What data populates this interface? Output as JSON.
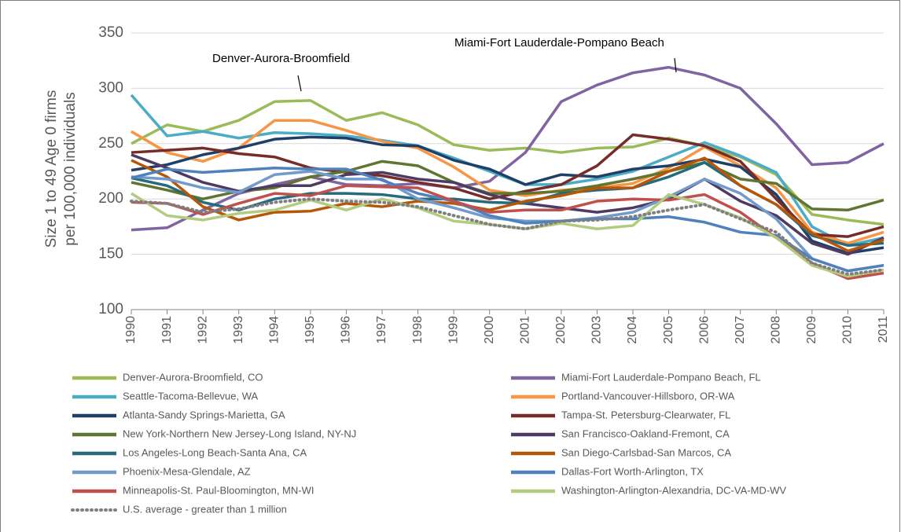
{
  "chart_data": {
    "type": "line",
    "ylabel": [
      "Size 1 to 49 Age 0 firms",
      "per 100,000 individuals"
    ],
    "annotations": [
      "Denver-Aurora-Broomfield",
      "Miami-Fort Lauderdale-Pompano Beach"
    ],
    "categories": [
      "1990",
      "1991",
      "1992",
      "1993",
      "1994",
      "1995",
      "1996",
      "1997",
      "1998",
      "1999",
      "2000",
      "2001",
      "2002",
      "2003",
      "2004",
      "2005",
      "2006",
      "2007",
      "2008",
      "2009",
      "2010",
      "2011"
    ],
    "ylim": [
      100,
      350
    ],
    "yticks": [
      100,
      150,
      200,
      250,
      300,
      350
    ],
    "grid": true,
    "legend": "bottom",
    "series": [
      {
        "name": "Denver-Aurora-Broomfield, CO",
        "color": "#9bbb59",
        "values": [
          250,
          267,
          261,
          271,
          288,
          289,
          271,
          278,
          267,
          249,
          244,
          246,
          242,
          246,
          247,
          255,
          248,
          238,
          222,
          186,
          181,
          177
        ]
      },
      {
        "name": "Miami-Fort Lauderdale-Pompano Beach, FL",
        "color": "#8064a2",
        "values": [
          172,
          174,
          190,
          205,
          213,
          220,
          213,
          212,
          214,
          210,
          216,
          242,
          288,
          303,
          314,
          319,
          312,
          300,
          268,
          231,
          233,
          250
        ]
      },
      {
        "name": "Seattle-Tacoma-Bellevue, WA",
        "color": "#4bacc6",
        "values": [
          294,
          257,
          261,
          255,
          260,
          259,
          257,
          253,
          248,
          237,
          225,
          213,
          213,
          218,
          225,
          238,
          251,
          239,
          224,
          175,
          158,
          165
        ]
      },
      {
        "name": "Portland-Vancouver-Hillsboro, OR-WA",
        "color": "#f79646",
        "values": [
          261,
          242,
          234,
          246,
          271,
          271,
          262,
          252,
          246,
          229,
          208,
          203,
          208,
          210,
          214,
          228,
          247,
          230,
          210,
          170,
          160,
          170
        ]
      },
      {
        "name": "Atlanta-Sandy Springs-Marietta, GA",
        "color": "#1f3f66",
        "values": [
          226,
          231,
          240,
          246,
          254,
          256,
          255,
          249,
          248,
          235,
          227,
          213,
          222,
          220,
          227,
          230,
          236,
          229,
          204,
          162,
          151,
          156
        ]
      },
      {
        "name": "Tampa-St. Petersburg-Clearwater, FL",
        "color": "#772c2a",
        "values": [
          242,
          244,
          246,
          241,
          238,
          228,
          224,
          221,
          215,
          210,
          200,
          207,
          213,
          230,
          258,
          254,
          248,
          234,
          200,
          168,
          166,
          175
        ]
      },
      {
        "name": "New York-Northern New Jersey-Long Island, NY-NJ",
        "color": "#5f7530",
        "values": [
          215,
          208,
          200,
          207,
          210,
          220,
          225,
          234,
          230,
          215,
          205,
          205,
          207,
          212,
          218,
          225,
          233,
          218,
          214,
          191,
          190,
          199
        ]
      },
      {
        "name": "San Francisco-Oakland-Fremont, CA",
        "color": "#4d3b62",
        "values": [
          240,
          228,
          215,
          207,
          212,
          212,
          222,
          224,
          218,
          215,
          204,
          196,
          192,
          188,
          192,
          200,
          218,
          198,
          185,
          160,
          150,
          165
        ]
      },
      {
        "name": "Los Angeles-Long Beach-Santa Ana, CA",
        "color": "#276a7c",
        "values": [
          219,
          212,
          197,
          190,
          200,
          205,
          205,
          204,
          200,
          200,
          197,
          196,
          205,
          208,
          210,
          220,
          233,
          212,
          195,
          167,
          158,
          160
        ]
      },
      {
        "name": "San Diego-Carlsbad-San Marcos, CA",
        "color": "#b65708",
        "values": [
          235,
          220,
          193,
          181,
          188,
          189,
          196,
          193,
          198,
          196,
          190,
          198,
          203,
          210,
          210,
          225,
          237,
          212,
          195,
          169,
          153,
          163
        ]
      },
      {
        "name": "Phoenix-Mesa-Glendale, AZ",
        "color": "#729aca",
        "values": [
          220,
          218,
          210,
          206,
          222,
          225,
          218,
          218,
          200,
          192,
          183,
          180,
          180,
          183,
          188,
          202,
          218,
          205,
          182,
          146,
          135,
          140
        ]
      },
      {
        "name": "Dallas-Fort Worth-Arlington, TX",
        "color": "#4f81bd",
        "values": [
          219,
          227,
          224,
          226,
          228,
          227,
          227,
          217,
          205,
          198,
          185,
          178,
          180,
          182,
          182,
          184,
          179,
          170,
          167,
          146,
          135,
          140
        ]
      },
      {
        "name": "Minneapolis-St. Paul-Bloomington, MN-WI",
        "color": "#c0504d",
        "values": [
          197,
          196,
          186,
          196,
          205,
          203,
          212,
          211,
          210,
          198,
          188,
          190,
          190,
          198,
          200,
          199,
          204,
          188,
          165,
          142,
          128,
          133
        ]
      },
      {
        "name": "Washington-Arlington-Alexandria, DC-VA-MD-WV",
        "color": "#b2cb7e",
        "values": [
          205,
          185,
          181,
          187,
          190,
          199,
          190,
          200,
          192,
          180,
          177,
          173,
          178,
          173,
          176,
          204,
          195,
          183,
          165,
          140,
          130,
          136
        ]
      },
      {
        "name": "U.S. average - greater than 1 million",
        "color": "#7f7f7f",
        "dotted": true,
        "values": [
          198,
          196,
          188,
          191,
          197,
          200,
          198,
          197,
          193,
          185,
          177,
          173,
          180,
          181,
          184,
          190,
          195,
          182,
          170,
          142,
          132,
          136
        ]
      }
    ]
  }
}
